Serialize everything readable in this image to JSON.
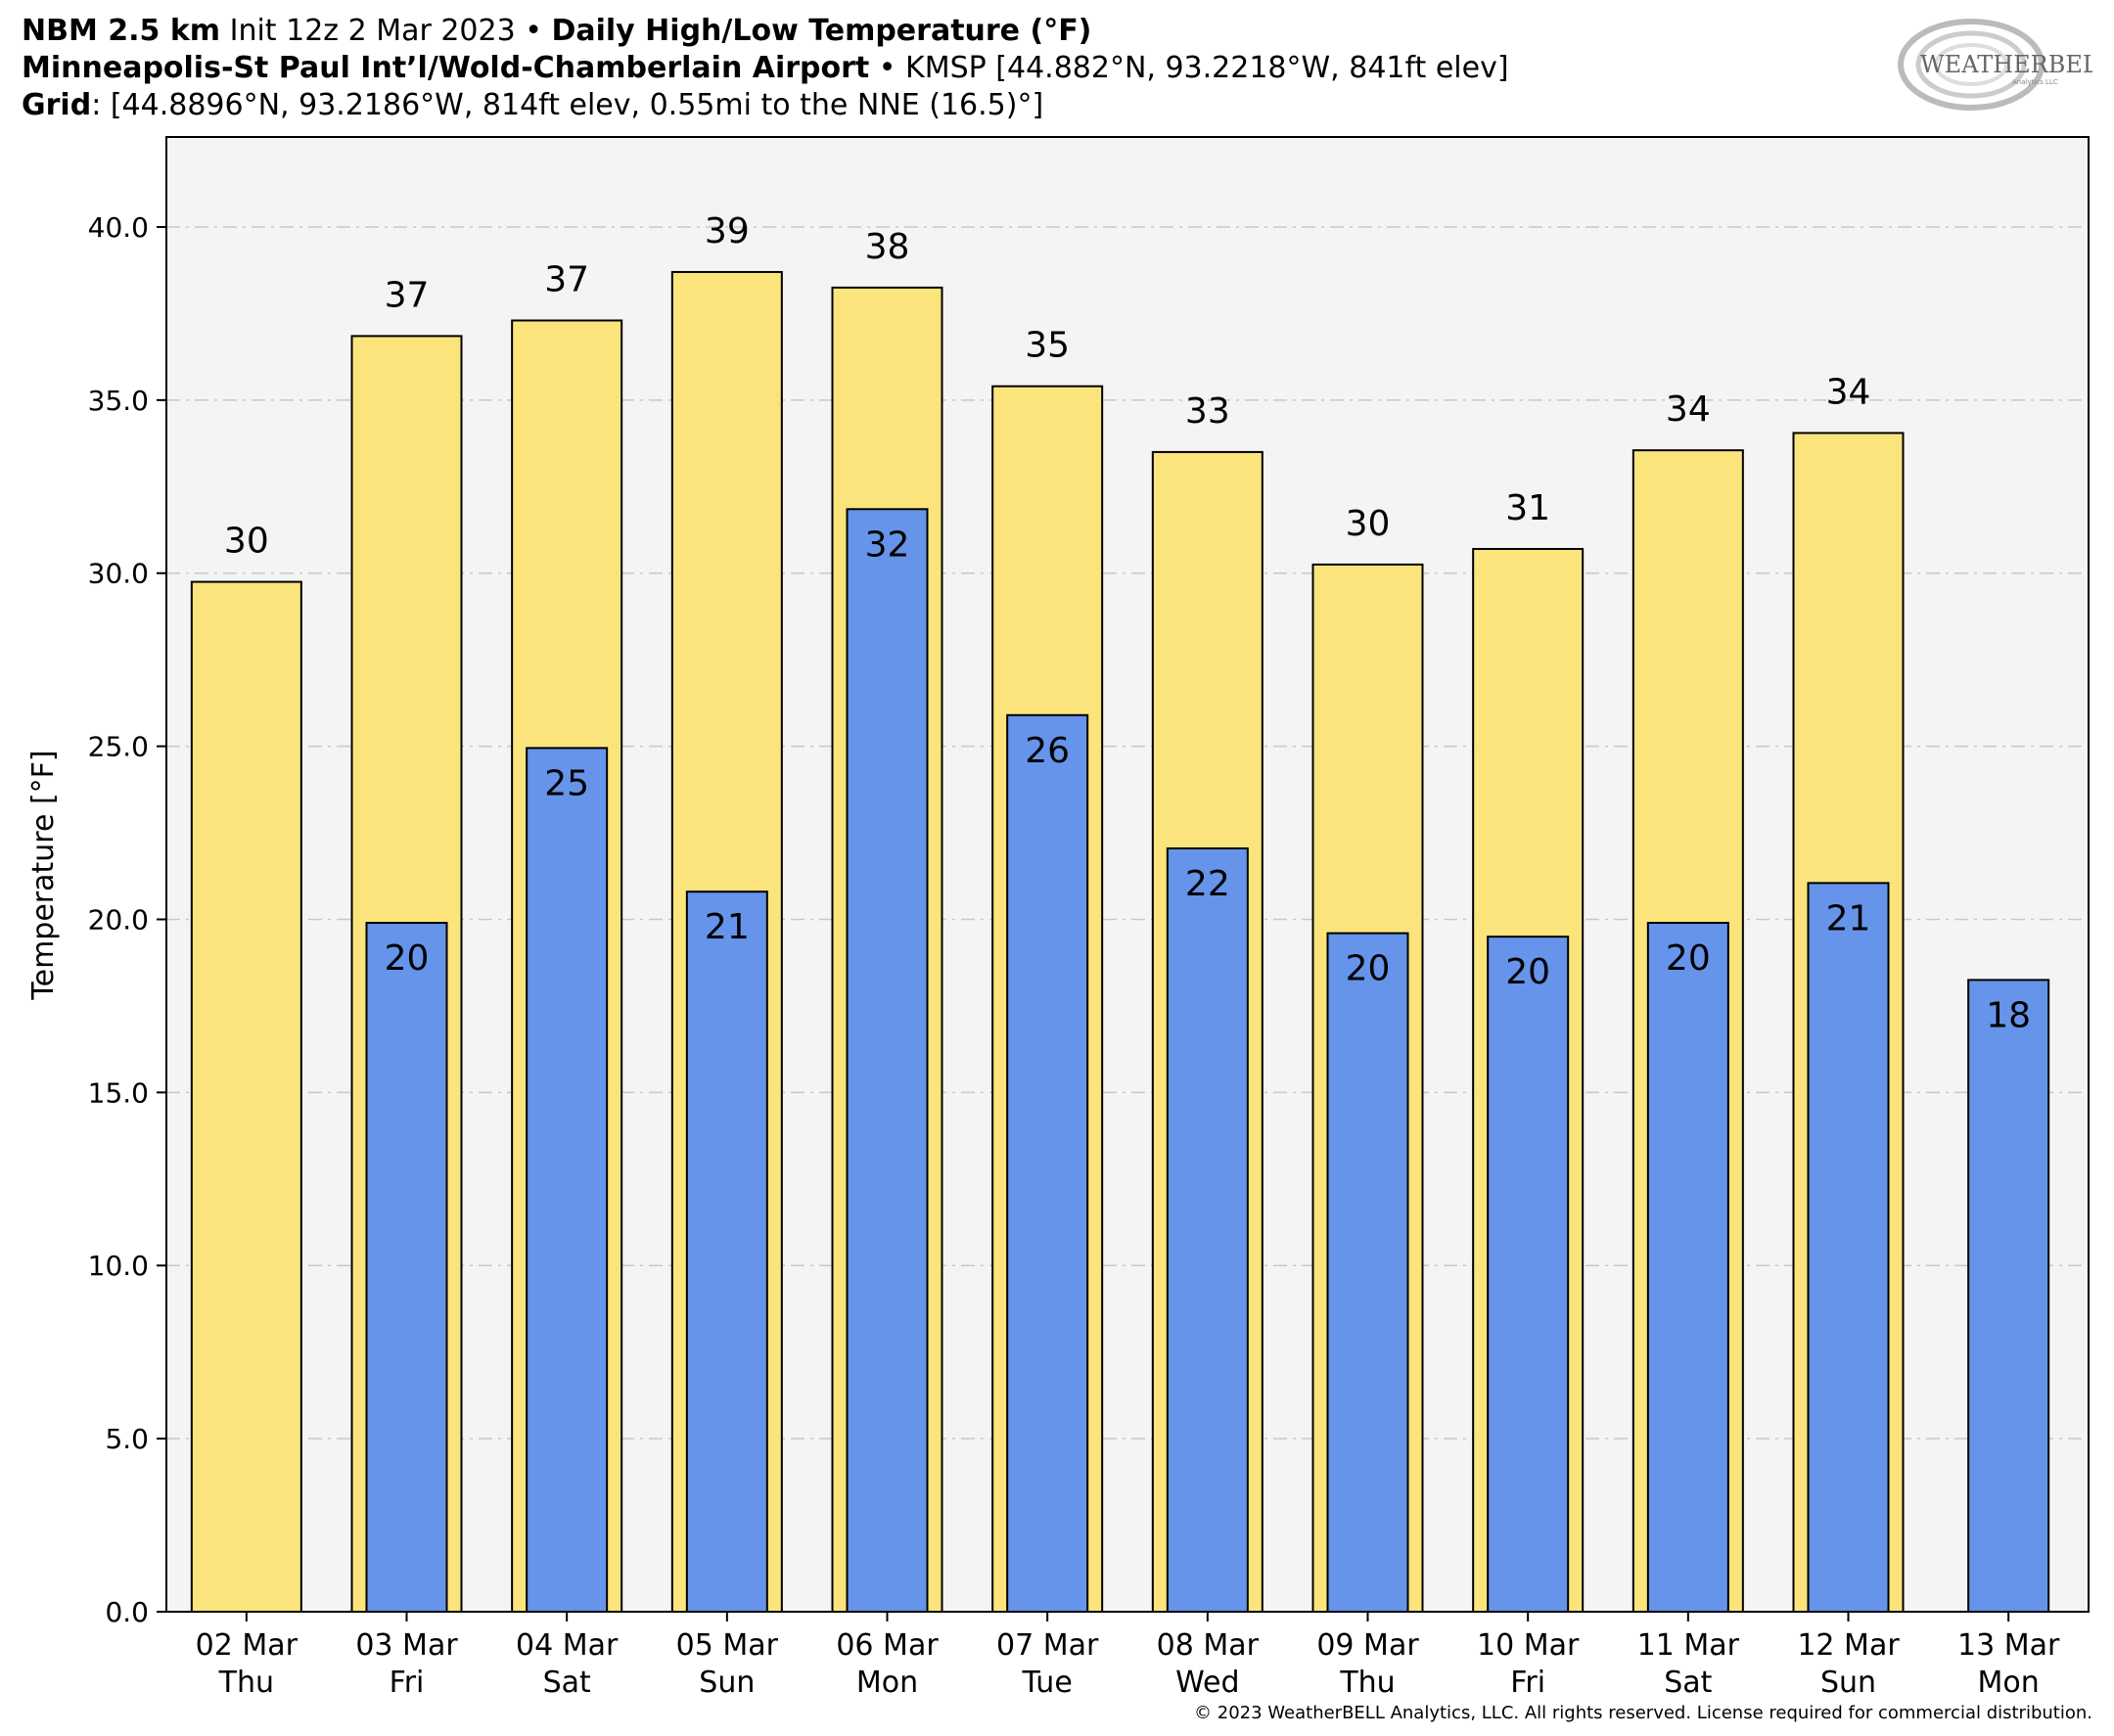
{
  "header": {
    "line1": {
      "model": "NBM 2.5 km",
      "init": " Init 12z 2 Mar 2023 ",
      "bullet": "•",
      "product": "Daily High/Low Temperature (°F)"
    },
    "line2": {
      "station": "Minneapolis-St Paul Int’l/Wold-Chamberlain Airport",
      "bullet": " • ",
      "info": "KMSP [44.882°N, 93.2218°W, 841ft elev]"
    },
    "line3": {
      "label": "Grid",
      "info": ": [44.8896°N, 93.2186°W, 814ft elev, 0.55mi to the NNE (16.5)°]"
    }
  },
  "logo": {
    "text": "WEATHERBELL",
    "sub": "Analytics LLC"
  },
  "footer": "© 2023 WeatherBELL Analytics, LLC. All rights reserved. License required for commercial distribution.",
  "colors": {
    "high": "#fce47c",
    "low": "#6594ea",
    "plot_bg": "#f4f4f4",
    "grid": "#c8c8c8",
    "edge": "#000000"
  },
  "chart_data": {
    "type": "bar",
    "ylabel": "Temperature [°F]",
    "ylim": [
      0,
      42.6
    ],
    "yticks": [
      0.0,
      5.0,
      10.0,
      15.0,
      20.0,
      25.0,
      30.0,
      35.0,
      40.0
    ],
    "ytick_labels": [
      "0.0",
      "5.0",
      "10.0",
      "15.0",
      "20.0",
      "25.0",
      "30.0",
      "35.0",
      "40.0"
    ],
    "grid": true,
    "categories": [
      {
        "date": "02 Mar",
        "day": "Thu"
      },
      {
        "date": "03 Mar",
        "day": "Fri"
      },
      {
        "date": "04 Mar",
        "day": "Sat"
      },
      {
        "date": "05 Mar",
        "day": "Sun"
      },
      {
        "date": "06 Mar",
        "day": "Mon"
      },
      {
        "date": "07 Mar",
        "day": "Tue"
      },
      {
        "date": "08 Mar",
        "day": "Wed"
      },
      {
        "date": "09 Mar",
        "day": "Thu"
      },
      {
        "date": "10 Mar",
        "day": "Fri"
      },
      {
        "date": "11 Mar",
        "day": "Sat"
      },
      {
        "date": "12 Mar",
        "day": "Sun"
      },
      {
        "date": "13 Mar",
        "day": "Mon"
      }
    ],
    "series": [
      {
        "key": "high",
        "values": [
          29.75,
          36.85,
          37.3,
          38.7,
          38.25,
          35.4,
          33.5,
          30.25,
          30.7,
          33.55,
          34.05,
          null
        ],
        "labels": [
          "30",
          "37",
          "37",
          "39",
          "38",
          "35",
          "33",
          "30",
          "31",
          "34",
          "34",
          null
        ]
      },
      {
        "key": "low",
        "values": [
          null,
          19.9,
          24.95,
          20.8,
          31.85,
          25.9,
          22.05,
          19.6,
          19.5,
          19.9,
          21.05,
          18.25
        ],
        "labels": [
          null,
          "20",
          "25",
          "21",
          "32",
          "26",
          "22",
          "20",
          "20",
          "20",
          "21",
          "18"
        ]
      }
    ]
  }
}
